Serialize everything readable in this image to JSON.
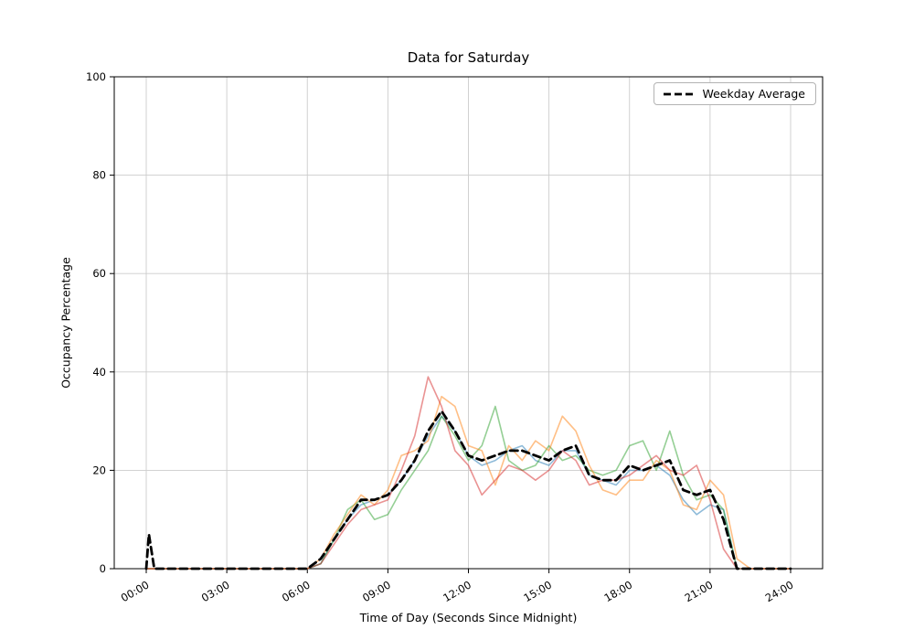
{
  "chart_data": {
    "type": "line",
    "title": "Data for Saturday",
    "xlabel": "Time of Day (Seconds Since Midnight)",
    "ylabel": "Occupancy Percentage",
    "xlim": [
      0,
      24
    ],
    "ylim": [
      0,
      100
    ],
    "grid": true,
    "yticks": [
      0,
      20,
      40,
      60,
      80,
      100
    ],
    "xtick_hours": [
      0,
      3,
      6,
      9,
      12,
      15,
      18,
      21,
      24
    ],
    "xtick_labels": [
      "00:00",
      "03:00",
      "06:00",
      "09:00",
      "12:00",
      "15:00",
      "18:00",
      "21:00",
      "24:00"
    ],
    "x_hours": [
      0,
      0.1,
      0.3,
      0.5,
      1,
      1.5,
      2,
      2.5,
      3,
      3.5,
      4,
      4.5,
      5,
      5.5,
      6,
      6.5,
      7,
      7.5,
      8,
      8.5,
      9,
      9.5,
      10,
      10.5,
      11,
      11.5,
      12,
      12.5,
      13,
      13.5,
      14,
      14.5,
      15,
      15.5,
      16,
      16.5,
      17,
      17.5,
      18,
      18.5,
      19,
      19.5,
      20,
      20.5,
      21,
      21.5,
      22,
      22.5,
      23,
      23.5,
      24
    ],
    "series": [
      {
        "color": "#1f77b4",
        "opacity": 0.5,
        "width": 1.6,
        "dash": false,
        "values": [
          0,
          0,
          0,
          0,
          0,
          0,
          0,
          0,
          0,
          0,
          0,
          0,
          0,
          0,
          0,
          1,
          6,
          10,
          13,
          14,
          15,
          18,
          22,
          27,
          31,
          28,
          23,
          21,
          22,
          24,
          25,
          22,
          21,
          24,
          24,
          19,
          18,
          17,
          20,
          20,
          21,
          19,
          14,
          11,
          13,
          12,
          0,
          0,
          0,
          0,
          0
        ]
      },
      {
        "color": "#2ca02c",
        "opacity": 0.5,
        "width": 1.6,
        "dash": false,
        "values": [
          0,
          0,
          0,
          0,
          0,
          0,
          0,
          0,
          0,
          0,
          0,
          0,
          0,
          0,
          0,
          1,
          6,
          12,
          14,
          10,
          11,
          16,
          20,
          24,
          31,
          27,
          22,
          25,
          33,
          22,
          20,
          21,
          25,
          22,
          23,
          20,
          19,
          20,
          25,
          26,
          20,
          28,
          19,
          14,
          15,
          12,
          0,
          0,
          0,
          0,
          0
        ]
      },
      {
        "color": "#ff7f0e",
        "opacity": 0.5,
        "width": 1.6,
        "dash": false,
        "values": [
          0,
          0,
          0,
          0,
          0,
          0,
          0,
          0,
          0,
          0,
          0,
          0,
          0,
          0,
          0,
          2,
          7,
          11,
          15,
          13,
          16,
          23,
          24,
          26,
          35,
          33,
          25,
          24,
          17,
          25,
          22,
          26,
          24,
          31,
          28,
          21,
          16,
          15,
          18,
          18,
          22,
          20,
          13,
          12,
          18,
          15,
          2,
          0,
          0,
          0,
          0
        ]
      },
      {
        "color": "#d62728",
        "opacity": 0.5,
        "width": 1.6,
        "dash": false,
        "values": [
          0,
          0,
          0,
          0,
          0,
          0,
          0,
          0,
          0,
          0,
          0,
          0,
          0,
          0,
          0,
          1,
          5,
          9,
          12,
          13,
          14,
          20,
          27,
          39,
          33,
          24,
          21,
          15,
          18,
          21,
          20,
          18,
          20,
          24,
          22,
          17,
          18,
          18,
          19,
          21,
          23,
          20,
          19,
          21,
          14,
          4,
          0,
          0,
          0,
          0,
          0
        ]
      },
      {
        "name": "Weekday Average",
        "color": "#000000",
        "opacity": 1,
        "width": 2.8,
        "dash": true,
        "values": [
          0,
          7,
          0,
          0,
          0,
          0,
          0,
          0,
          0,
          0,
          0,
          0,
          0,
          0,
          0,
          2,
          6,
          10,
          14,
          14,
          15,
          18,
          22,
          28,
          32,
          28,
          23,
          22,
          23,
          24,
          24,
          23,
          22,
          24,
          25,
          19,
          18,
          18,
          21,
          20,
          21,
          22,
          16,
          15,
          16,
          10,
          0,
          0,
          0,
          0,
          0
        ]
      }
    ],
    "legend": {
      "position": "upper right",
      "entries": [
        {
          "label": "Weekday Average",
          "color": "#000000",
          "dash": true
        }
      ]
    },
    "style": {
      "grid_color": "#cccccc",
      "spine_color": "#000000",
      "background": "#ffffff"
    }
  }
}
